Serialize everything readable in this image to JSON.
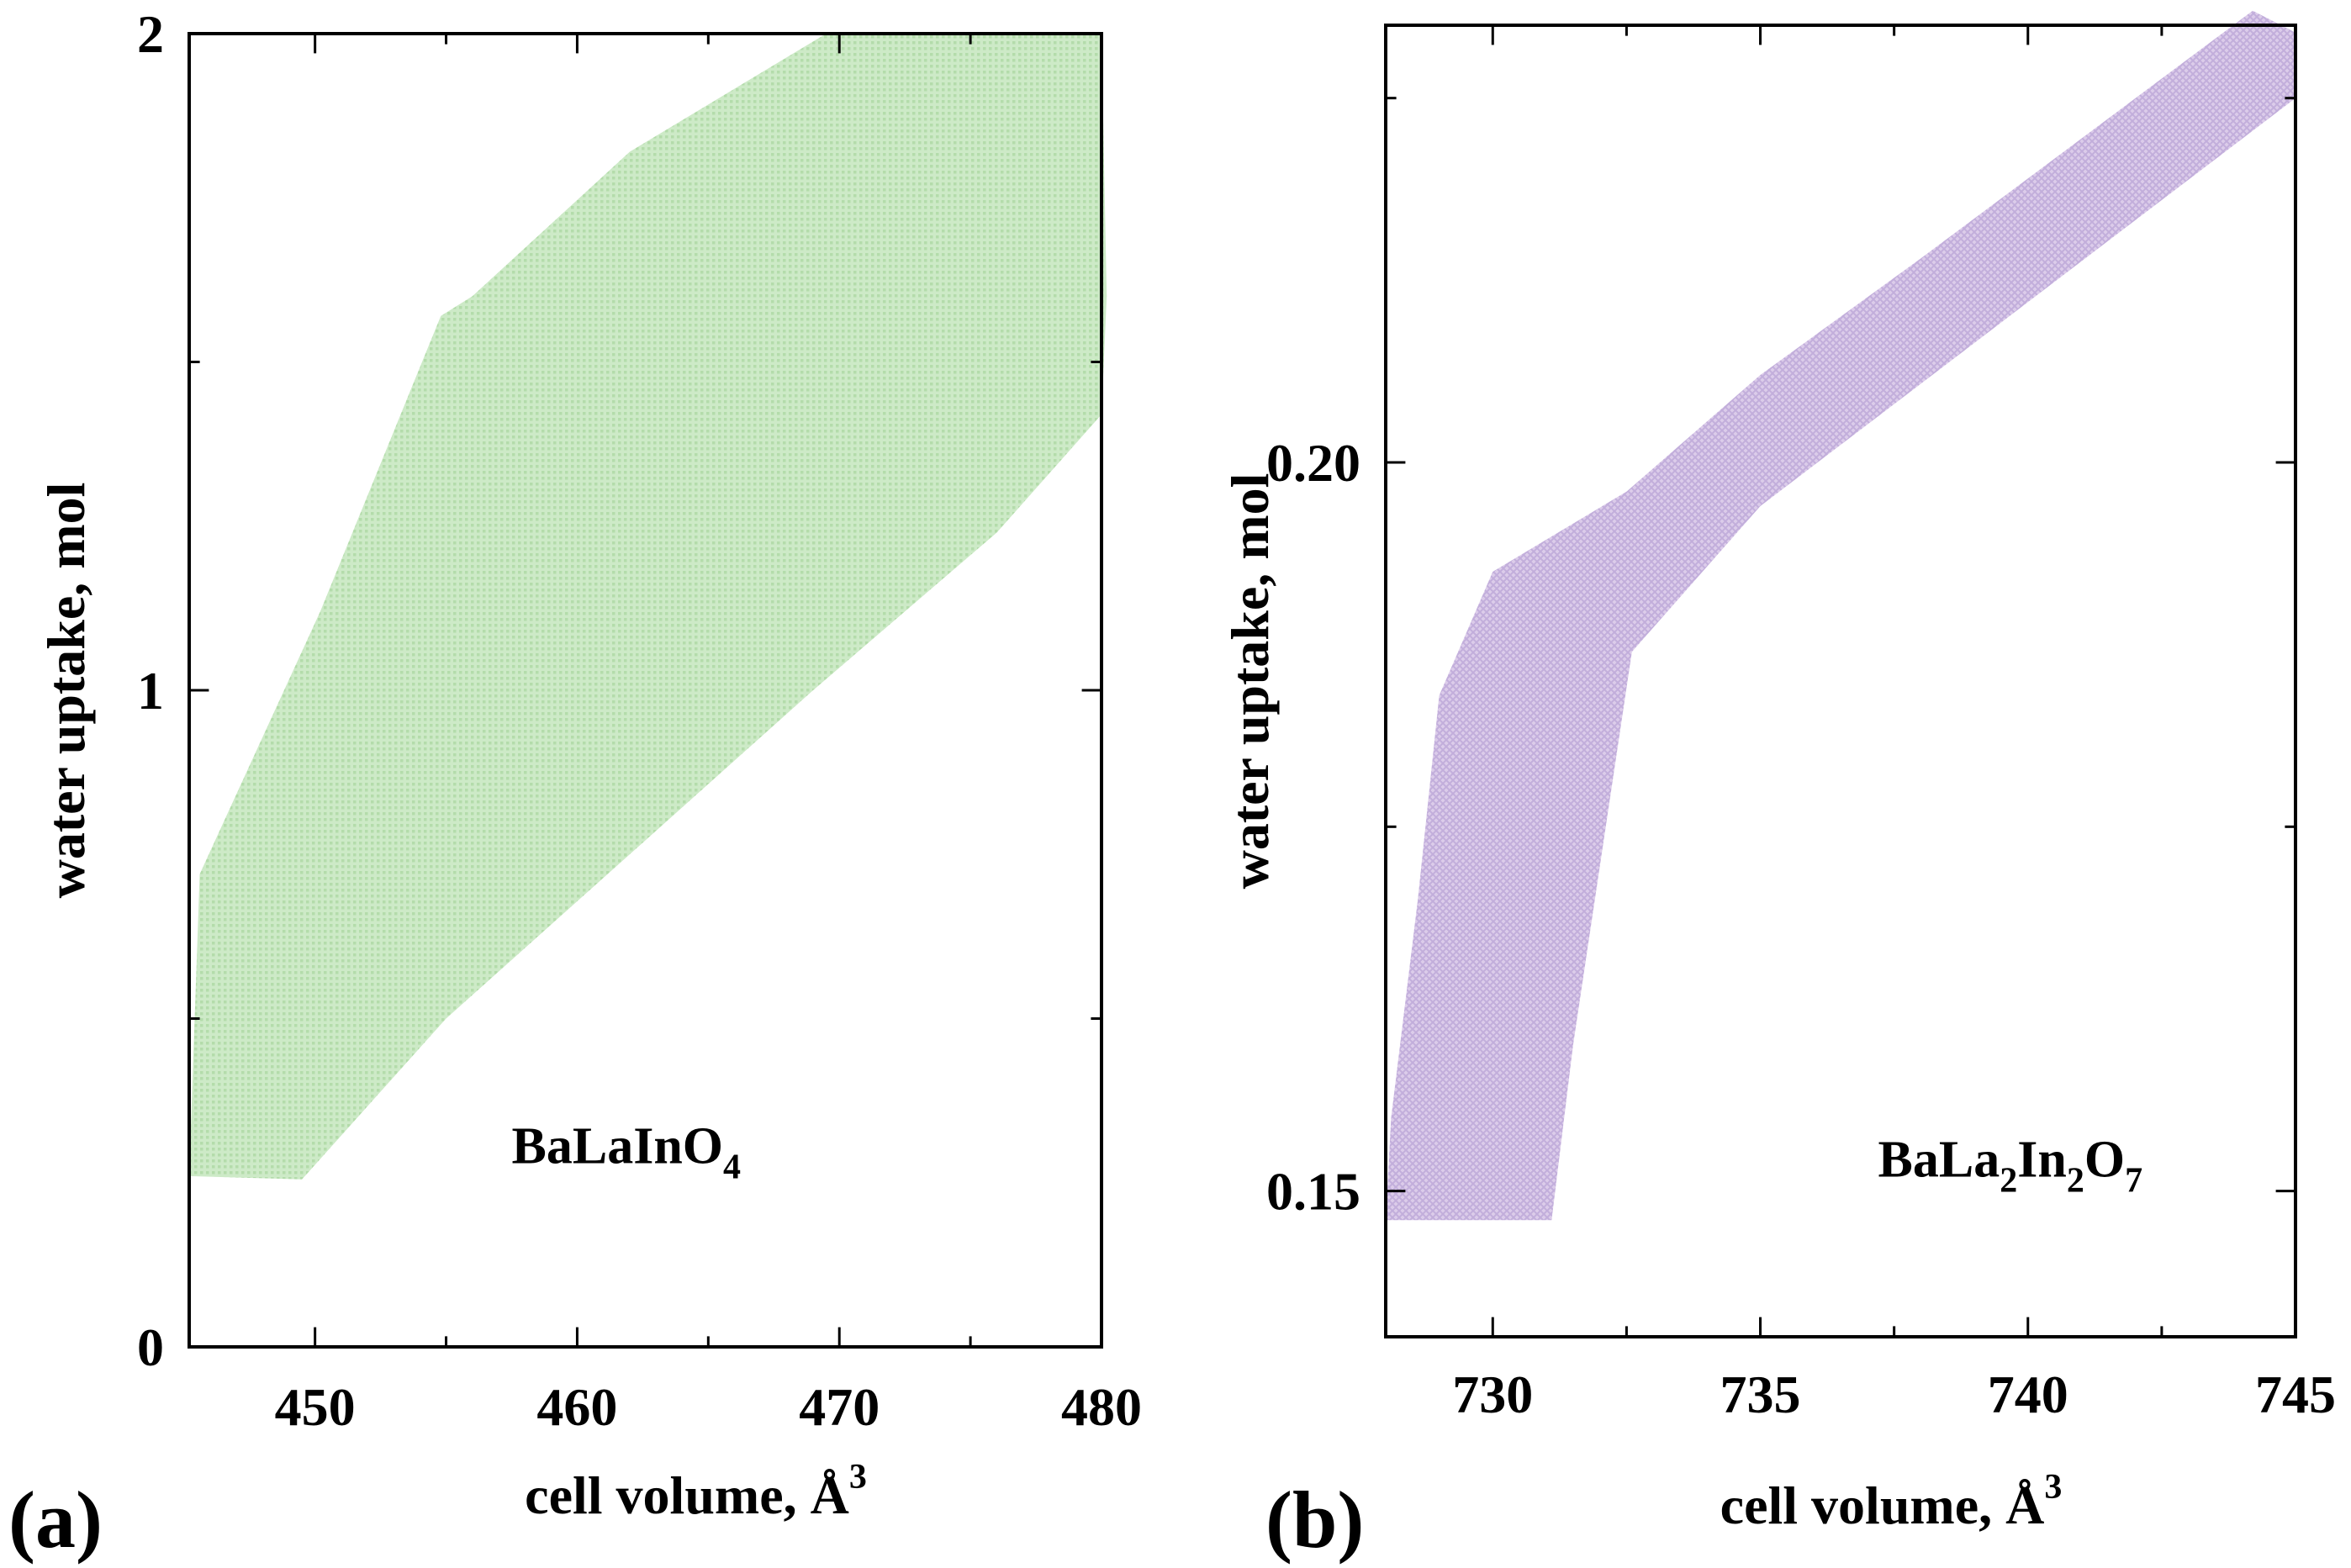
{
  "chart_data": [
    {
      "type": "area",
      "panel_label": "(a)",
      "xlabel_text": "cell volume, Å",
      "xlabel_sup": "3",
      "ylabel": "water uptake, mol",
      "xlim": [
        445.2,
        480
      ],
      "ylim": [
        0,
        2
      ],
      "xticks_major": [
        450,
        460,
        470,
        480
      ],
      "xticks_minor": [
        455,
        465,
        475
      ],
      "yticks_major": [
        0,
        1,
        2
      ],
      "yticks_minor": [
        0.5,
        1.5
      ],
      "grid": false,
      "fill_color": "#cdeac7",
      "hatch_color": "#b4dcab",
      "annotation": {
        "main": "BaLaInO",
        "sub": "4",
        "at": [
          457.5,
          0.28
        ]
      },
      "region": [
        [
          445.2,
          0.26
        ],
        [
          449.5,
          0.255
        ],
        [
          455,
          0.5
        ],
        [
          462,
          0.75
        ],
        [
          469,
          1.0
        ],
        [
          476,
          1.24
        ],
        [
          480,
          1.42
        ],
        [
          480.2,
          1.6
        ],
        [
          480,
          2.0
        ],
        [
          469.5,
          2.0
        ],
        [
          462,
          1.82
        ],
        [
          456,
          1.6
        ],
        [
          454.8,
          1.57
        ],
        [
          450.2,
          1.12
        ],
        [
          445.6,
          0.72
        ]
      ]
    },
    {
      "type": "area",
      "panel_label": "(b)",
      "xlabel_text": "cell volume, Å",
      "xlabel_sup": "3",
      "ylabel": "water uptake, mol",
      "xlim": [
        728,
        745
      ],
      "ylim": [
        0.14,
        0.23
      ],
      "xticks_major": [
        730,
        735,
        740,
        745
      ],
      "xticks_minor": [
        732.5,
        737.5,
        742.5
      ],
      "yticks_major": [
        0.15,
        0.2
      ],
      "yticks_labels": [
        "0.15",
        "0.20"
      ],
      "yticks_minor": [
        0.175,
        0.225
      ],
      "grid": false,
      "fill_color": "#dcccea",
      "hatch_color": "#c2aedb",
      "annotation": {
        "parts": [
          "BaLa",
          "2",
          "In",
          "2",
          "O",
          "7"
        ],
        "at": [
          737.2,
          0.151
        ]
      },
      "region": [
        [
          728,
          0.148
        ],
        [
          731.1,
          0.148
        ],
        [
          731.5,
          0.16
        ],
        [
          732.6,
          0.187
        ],
        [
          735,
          0.197
        ],
        [
          740,
          0.211
        ],
        [
          745,
          0.225
        ],
        [
          745,
          0.2295
        ],
        [
          744.2,
          0.231
        ],
        [
          738,
          0.214
        ],
        [
          735,
          0.206
        ],
        [
          732.5,
          0.198
        ],
        [
          730,
          0.1925
        ],
        [
          729,
          0.184
        ],
        [
          728.6,
          0.17
        ],
        [
          728.1,
          0.155
        ]
      ]
    }
  ]
}
